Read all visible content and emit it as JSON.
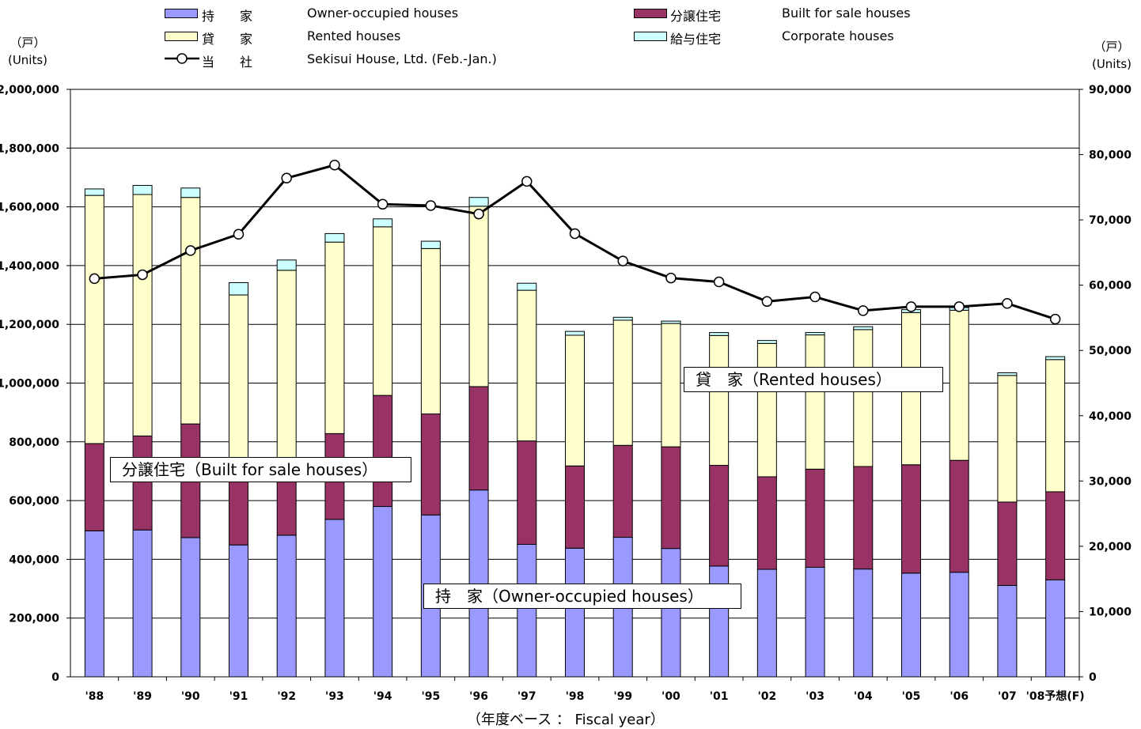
{
  "legend": {
    "owner": {
      "jp": "持　　家",
      "en": "Owner-occupied houses",
      "color": "#9999ff"
    },
    "sale": {
      "jp": "分譲住宅",
      "en": "Built for sale houses",
      "color": "#993366"
    },
    "rented": {
      "jp": "貸　　家",
      "en": "Rented houses",
      "color": "#ffffcc"
    },
    "corporate": {
      "jp": "給与住宅",
      "en": "Corporate houses",
      "color": "#ccffff"
    },
    "sekisui": {
      "jp": "当　　社",
      "en": "Sekisui House, Ltd. (Feb.-Jan.)",
      "color": "#000000"
    }
  },
  "axes": {
    "left_unit_jp": "（戸）",
    "left_unit_en": "(Units)",
    "right_unit_jp": "（戸）",
    "right_unit_en": "(Units)",
    "x_title": "（年度ベース ： Fiscal year）"
  },
  "callouts": {
    "rented": "貸　家（Rented houses）",
    "sale": "分譲住宅（Built for sale houses）",
    "owner": "持　家（Owner-occupied houses）"
  },
  "chart_data": {
    "type": "bar",
    "stacked": true,
    "categories": [
      "'88",
      "'89",
      "'90",
      "'91",
      "'92",
      "'93",
      "'94",
      "'95",
      "'96",
      "'97",
      "'98",
      "'99",
      "'00",
      "'01",
      "'02",
      "'03",
      "'04",
      "'05",
      "'06",
      "'07",
      "'08予想(F)"
    ],
    "series": [
      {
        "name": "Owner-occupied houses",
        "values": [
          497000,
          500000,
          474000,
          449000,
          482000,
          536000,
          580000,
          551000,
          636000,
          451000,
          438000,
          475000,
          437000,
          377000,
          366000,
          373000,
          367000,
          353000,
          356000,
          311000,
          330000
        ]
      },
      {
        "name": "Built for sale houses",
        "values": [
          297000,
          320000,
          387000,
          220000,
          182000,
          292000,
          378000,
          344000,
          352000,
          352000,
          280000,
          313000,
          346000,
          343000,
          315000,
          334000,
          349000,
          369000,
          381000,
          284000,
          300000
        ]
      },
      {
        "name": "Rented houses",
        "values": [
          845000,
          822000,
          771000,
          631000,
          720000,
          652000,
          574000,
          563000,
          614000,
          513000,
          445000,
          426000,
          420000,
          442000,
          454000,
          457000,
          466000,
          518000,
          511000,
          431000,
          450000
        ]
      },
      {
        "name": "Corporate houses",
        "values": [
          22000,
          31000,
          32000,
          42000,
          35000,
          29000,
          27000,
          25000,
          30000,
          24000,
          13000,
          10000,
          8000,
          10000,
          10000,
          8000,
          10000,
          10000,
          9000,
          9000,
          10000
        ]
      }
    ],
    "line": {
      "name": "Sekisui House, Ltd. (Feb.-Jan.)",
      "axis": "right",
      "values": [
        61000,
        61600,
        65300,
        67800,
        76400,
        78400,
        72400,
        72200,
        70900,
        75900,
        67900,
        63700,
        61100,
        60500,
        57500,
        58200,
        56100,
        56700,
        56700,
        57200,
        54800
      ]
    },
    "y_left": {
      "min": 0,
      "max": 2000000,
      "step": 200000
    },
    "y_right": {
      "min": 0,
      "max": 90000,
      "step": 10000
    },
    "grid": true
  }
}
